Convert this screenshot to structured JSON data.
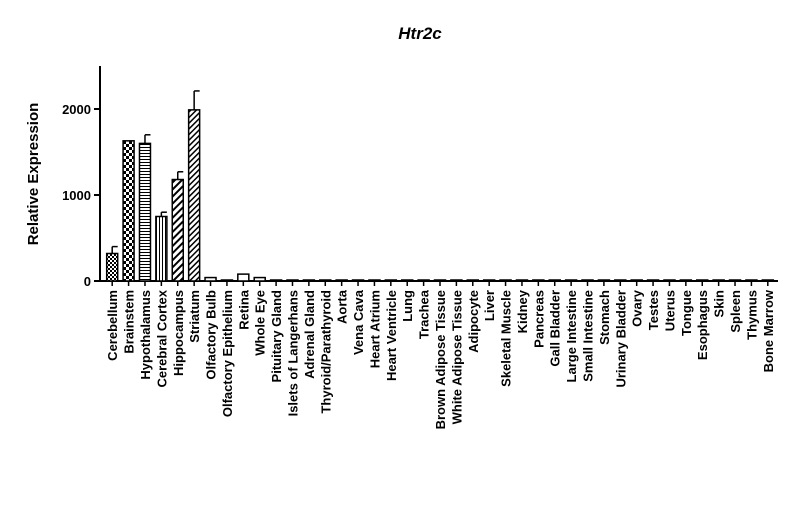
{
  "chart_data": {
    "type": "bar",
    "title": "Htr2c",
    "xlabel": "",
    "ylabel": "Relative Expression",
    "ylim": [
      0,
      2500
    ],
    "yticks": [
      0,
      1000,
      2000
    ],
    "grid": false,
    "categories": [
      "Cerebellum",
      "Brainstem",
      "Hypothalamus",
      "Cerebral Cortex",
      "Hippocampus",
      "Striatum",
      "Olfactory Bulb",
      "Olfactory Epithelium",
      "Retina",
      "Whole Eye",
      "Pituitary Gland",
      "Islets of Langerhans",
      "Adrenal Gland",
      "Thyroid/Parathyroid",
      "Aorta",
      "Vena Cava",
      "Heart Atrium",
      "Heart Ventricle",
      "Lung",
      "Trachea",
      "Brown Adipose Tissue",
      "White Adipose Tissue",
      "Adipocyte",
      "Liver",
      "Skeletal Muscle",
      "Kidney",
      "Pancreas",
      "Gall Bladder",
      "Large Intestine",
      "Small Intestine",
      "Stomach",
      "Urinary Bladder",
      "Ovary",
      "Testes",
      "Uterus",
      "Tongue",
      "Esophagus",
      "Skin",
      "Spleen",
      "Thymus",
      "Bone Marrow"
    ],
    "values": [
      320,
      1630,
      1600,
      750,
      1180,
      1990,
      40,
      0,
      80,
      40,
      8,
      0,
      0,
      0,
      0,
      0,
      0,
      0,
      8,
      0,
      0,
      0,
      0,
      0,
      0,
      0,
      0,
      0,
      0,
      0,
      0,
      5,
      0,
      0,
      0,
      0,
      0,
      0,
      0,
      0,
      0
    ],
    "errors": [
      80,
      0,
      100,
      50,
      90,
      220,
      0,
      0,
      0,
      0,
      0,
      0,
      0,
      0,
      0,
      0,
      0,
      0,
      0,
      0,
      0,
      0,
      0,
      0,
      0,
      0,
      0,
      0,
      0,
      0,
      0,
      0,
      0,
      0,
      0,
      0,
      0,
      0,
      0,
      0,
      0
    ]
  }
}
